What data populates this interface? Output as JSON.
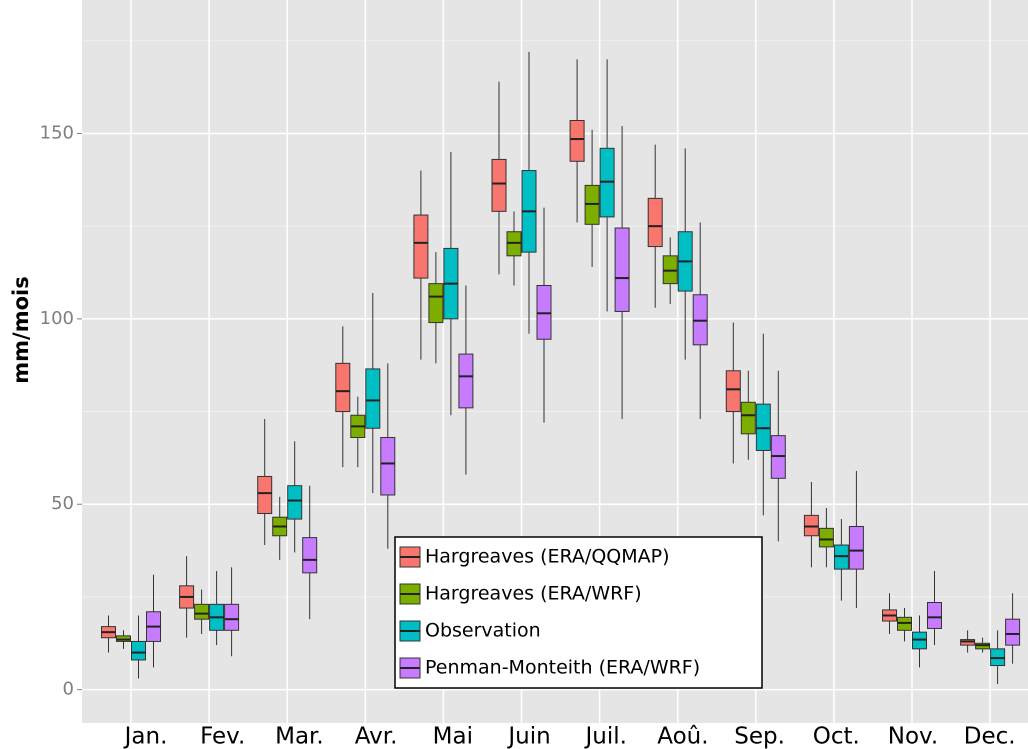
{
  "chart_data": {
    "type": "box",
    "y_label": "mm/mois",
    "categories": [
      "Jan.",
      "Fev.",
      "Mar.",
      "Avr.",
      "Mai",
      "Juin",
      "Juil.",
      "Aoû.",
      "Sep.",
      "Oct.",
      "Nov.",
      "Dec."
    ],
    "ylim": [
      -9,
      186
    ],
    "yticks": [
      0,
      50,
      100,
      150
    ],
    "minor_yticks": [
      25,
      75,
      125,
      175
    ],
    "grid": true,
    "legend_position": "bottom",
    "series": [
      {
        "name": "Hargreaves (ERA/QQMAP)",
        "color": "#F8766D",
        "values": [
          {
            "low": 10,
            "q1": 14,
            "median": 15.5,
            "q3": 17,
            "high": 20
          },
          {
            "low": 14,
            "q1": 22,
            "median": 25,
            "q3": 28,
            "high": 36
          },
          {
            "low": 39,
            "q1": 47.5,
            "median": 53,
            "q3": 57.5,
            "high": 73
          },
          {
            "low": 60,
            "q1": 75,
            "median": 80.5,
            "q3": 88,
            "high": 98
          },
          {
            "low": 89,
            "q1": 111,
            "median": 120.5,
            "q3": 128,
            "high": 140
          },
          {
            "low": 112,
            "q1": 129,
            "median": 136.5,
            "q3": 143,
            "high": 164
          },
          {
            "low": 126,
            "q1": 142.5,
            "median": 148.5,
            "q3": 153.5,
            "high": 170
          },
          {
            "low": 103,
            "q1": 119.5,
            "median": 125,
            "q3": 132.5,
            "high": 147
          },
          {
            "low": 61,
            "q1": 75,
            "median": 81,
            "q3": 86,
            "high": 99
          },
          {
            "low": 33,
            "q1": 41.5,
            "median": 44,
            "q3": 47,
            "high": 56
          },
          {
            "low": 15,
            "q1": 18.5,
            "median": 20,
            "q3": 21.5,
            "high": 26
          },
          {
            "low": 10,
            "q1": 12,
            "median": 13,
            "q3": 13.5,
            "high": 16
          }
        ]
      },
      {
        "name": "Hargreaves (ERA/WRF)",
        "color": "#7CAE00",
        "values": [
          {
            "low": 11,
            "q1": 13,
            "median": 13.5,
            "q3": 14.5,
            "high": 16
          },
          {
            "low": 15,
            "q1": 19,
            "median": 20.5,
            "q3": 23,
            "high": 27
          },
          {
            "low": 35,
            "q1": 41.5,
            "median": 44,
            "q3": 46.5,
            "high": 52
          },
          {
            "low": 60,
            "q1": 68,
            "median": 71,
            "q3": 74,
            "high": 79
          },
          {
            "low": 88,
            "q1": 99,
            "median": 106,
            "q3": 109.5,
            "high": 118
          },
          {
            "low": 109,
            "q1": 117,
            "median": 120.5,
            "q3": 123.5,
            "high": 129
          },
          {
            "low": 114,
            "q1": 125.5,
            "median": 131,
            "q3": 136,
            "high": 151
          },
          {
            "low": 104,
            "q1": 109.5,
            "median": 113,
            "q3": 117,
            "high": 122
          },
          {
            "low": 62,
            "q1": 69,
            "median": 74,
            "q3": 77.5,
            "high": 86
          },
          {
            "low": 33,
            "q1": 38.5,
            "median": 40.5,
            "q3": 43.5,
            "high": 49
          },
          {
            "low": 13,
            "q1": 16,
            "median": 18,
            "q3": 19.5,
            "high": 22
          },
          {
            "low": 10,
            "q1": 11,
            "median": 12,
            "q3": 12.5,
            "high": 14
          }
        ]
      },
      {
        "name": "Observation",
        "color": "#00BFC4",
        "values": [
          {
            "low": 3,
            "q1": 8,
            "median": 10,
            "q3": 13,
            "high": 20
          },
          {
            "low": 12,
            "q1": 16,
            "median": 19.5,
            "q3": 23,
            "high": 32
          },
          {
            "low": 37,
            "q1": 46,
            "median": 51,
            "q3": 55,
            "high": 67
          },
          {
            "low": 53,
            "q1": 70.5,
            "median": 78,
            "q3": 86.5,
            "high": 107
          },
          {
            "low": 74,
            "q1": 100,
            "median": 109.5,
            "q3": 119,
            "high": 145
          },
          {
            "low": 96,
            "q1": 118,
            "median": 129,
            "q3": 140,
            "high": 172
          },
          {
            "low": 102,
            "q1": 127.5,
            "median": 137,
            "q3": 146,
            "high": 170
          },
          {
            "low": 89,
            "q1": 107.5,
            "median": 115.5,
            "q3": 123.5,
            "high": 146
          },
          {
            "low": 47,
            "q1": 64.5,
            "median": 70.5,
            "q3": 77,
            "high": 96
          },
          {
            "low": 24,
            "q1": 32.5,
            "median": 36,
            "q3": 39,
            "high": 46
          },
          {
            "low": 6,
            "q1": 11,
            "median": 13.5,
            "q3": 15.5,
            "high": 20
          },
          {
            "low": 1.5,
            "q1": 6.5,
            "median": 8.5,
            "q3": 11,
            "high": 16
          }
        ]
      },
      {
        "name": "Penman-Monteith (ERA/WRF)",
        "color": "#C77CFF",
        "values": [
          {
            "low": 6,
            "q1": 13,
            "median": 17,
            "q3": 21,
            "high": 31
          },
          {
            "low": 9,
            "q1": 16,
            "median": 19,
            "q3": 23,
            "high": 33
          },
          {
            "low": 19,
            "q1": 31.5,
            "median": 35,
            "q3": 41,
            "high": 55
          },
          {
            "low": 38,
            "q1": 52.5,
            "median": 61,
            "q3": 68,
            "high": 88
          },
          {
            "low": 58,
            "q1": 76,
            "median": 84.5,
            "q3": 90.5,
            "high": 109
          },
          {
            "low": 72,
            "q1": 94.5,
            "median": 101.5,
            "q3": 109,
            "high": 130
          },
          {
            "low": 73,
            "q1": 102,
            "median": 111,
            "q3": 124.5,
            "high": 152
          },
          {
            "low": 73,
            "q1": 93,
            "median": 99.5,
            "q3": 106.5,
            "high": 126
          },
          {
            "low": 40,
            "q1": 57,
            "median": 63,
            "q3": 68.5,
            "high": 86
          },
          {
            "low": 22,
            "q1": 32.5,
            "median": 37.5,
            "q3": 44,
            "high": 59
          },
          {
            "low": 12,
            "q1": 16.5,
            "median": 19.5,
            "q3": 23.5,
            "high": 32
          },
          {
            "low": 7,
            "q1": 12,
            "median": 15,
            "q3": 19,
            "high": 26
          }
        ]
      }
    ]
  }
}
